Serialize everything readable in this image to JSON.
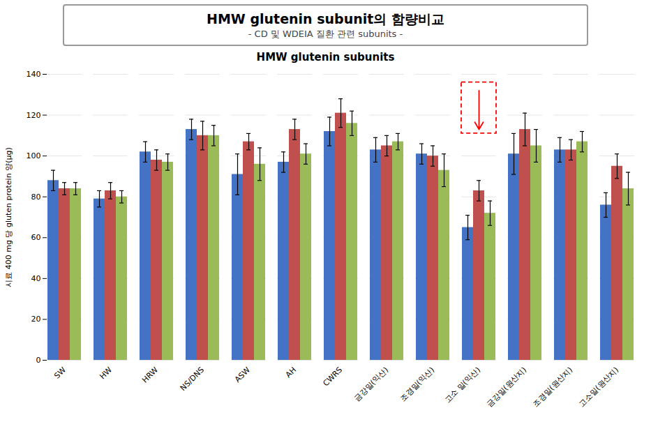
{
  "title": "HMW glutenin  subunit의 함량비교",
  "subtitle": "- CD 및  WDEIA  질환 관련 subunits -",
  "chart_data": {
    "type": "bar",
    "title": "HMW glutenin subunits",
    "ylabel": "시료 400 mg 당 gluten protein 양(μg)",
    "categories": [
      "SW",
      "HW",
      "HRW",
      "NS/DNS",
      "ASW",
      "AH",
      "CWRS",
      "금강밀(익산)",
      "조경밀(익산)",
      "고소 밀(익산)",
      "금강밀(원산지)",
      "조경밀(원산지)",
      "고소밀(원산지)"
    ],
    "series": [
      {
        "color": "#4472C4",
        "values": [
          88,
          79,
          102,
          113,
          91,
          97,
          112,
          103,
          101,
          65,
          101,
          103,
          76
        ],
        "errors": [
          5,
          4,
          5,
          5,
          10,
          5,
          7,
          6,
          5,
          6,
          10,
          6,
          6
        ]
      },
      {
        "color": "#C0504D",
        "values": [
          84,
          83,
          98,
          110,
          107,
          113,
          121,
          105,
          100,
          83,
          113,
          103,
          95
        ],
        "errors": [
          3,
          4,
          5,
          7,
          4,
          5,
          7,
          5,
          5,
          5,
          8,
          5,
          6
        ]
      },
      {
        "color": "#9BBB59",
        "values": [
          84,
          80,
          97,
          110,
          96,
          101,
          116,
          107,
          93,
          72,
          105,
          107,
          84
        ],
        "errors": [
          3,
          3,
          4,
          5,
          8,
          5,
          6,
          4,
          8,
          6,
          8,
          5,
          8
        ]
      }
    ],
    "ylim": [
      0,
      140
    ],
    "yticks": [
      0,
      20,
      40,
      60,
      80,
      100,
      120,
      140
    ],
    "grid": true,
    "annotations": [
      {
        "type": "box",
        "category": "고소 밀(익산)",
        "y": [
          111,
          136
        ],
        "color": "red",
        "line_style": "dashed"
      },
      {
        "type": "arrow",
        "category": "고소 밀(익산)",
        "y": [
          132,
          113
        ],
        "color": "red"
      }
    ]
  }
}
